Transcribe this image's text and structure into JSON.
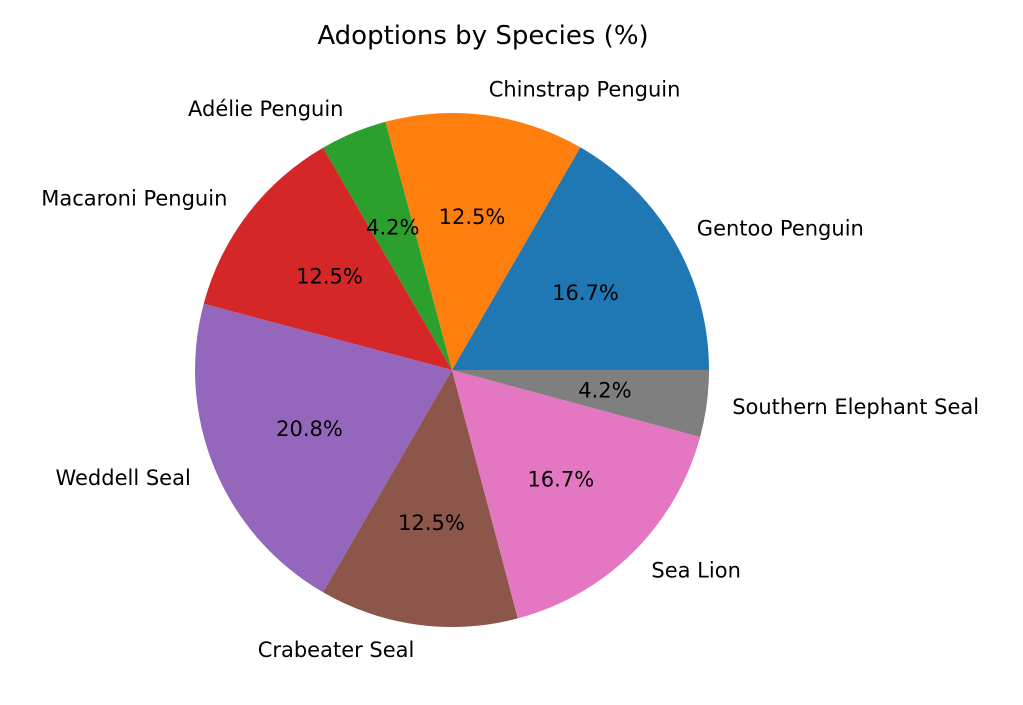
{
  "chart_data": {
    "type": "pie",
    "title": "Adoptions by Species (%)",
    "start_angle_deg": 0,
    "direction": "counterclockwise",
    "label_distance": 1.1,
    "pct_distance": 0.6,
    "text_color": "#000000",
    "background_color": "#ffffff",
    "legend": "none",
    "slices": [
      {
        "label": "Gentoo Penguin",
        "value": 16.7,
        "pct_label": "16.7%",
        "color": "#1f77b4"
      },
      {
        "label": "Chinstrap Penguin",
        "value": 12.5,
        "pct_label": "12.5%",
        "color": "#ff7f0e"
      },
      {
        "label": "Adélie Penguin",
        "value": 4.2,
        "pct_label": "4.2%",
        "color": "#2ca02c"
      },
      {
        "label": "Macaroni Penguin",
        "value": 12.5,
        "pct_label": "12.5%",
        "color": "#d62728"
      },
      {
        "label": "Weddell Seal",
        "value": 20.8,
        "pct_label": "20.8%",
        "color": "#9467bd"
      },
      {
        "label": "Crabeater Seal",
        "value": 12.5,
        "pct_label": "12.5%",
        "color": "#8c564b"
      },
      {
        "label": "Sea Lion",
        "value": 16.7,
        "pct_label": "16.7%",
        "color": "#e377c2"
      },
      {
        "label": "Southern Elephant Seal",
        "value": 4.2,
        "pct_label": "4.2%",
        "color": "#7f7f7f"
      }
    ]
  }
}
